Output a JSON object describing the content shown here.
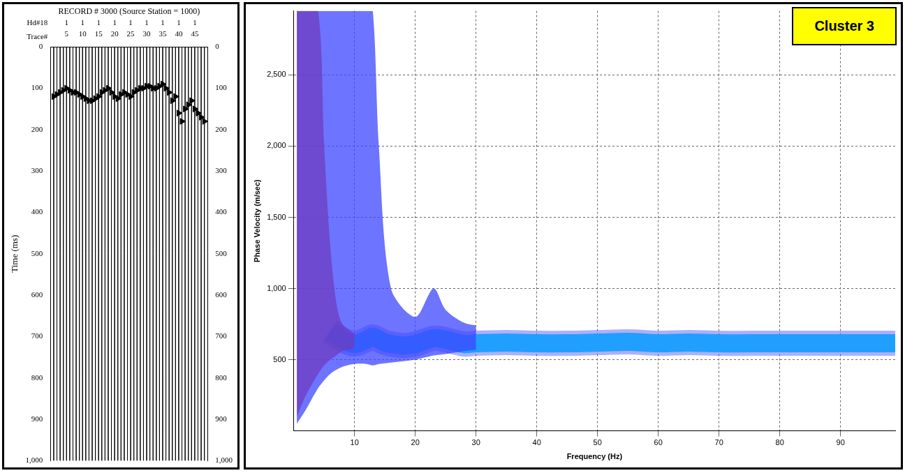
{
  "chart_data": [
    {
      "type": "wiggle",
      "title": "RECORD # 3000 (Source Station = 1000)",
      "header_label": "Hd#18",
      "header_values": [
        1,
        1,
        1,
        1,
        1,
        1,
        1,
        1,
        1
      ],
      "x_label": "Trace#",
      "y_label": "Time (ms)",
      "x": [
        1,
        2,
        3,
        4,
        5,
        6,
        7,
        8,
        9,
        10,
        11,
        12,
        13,
        14,
        15,
        16,
        17,
        18,
        19,
        20,
        21,
        22,
        23,
        24,
        25,
        26,
        27,
        28,
        29,
        30,
        31,
        32,
        33,
        34,
        35,
        36,
        37,
        38,
        39,
        40,
        41,
        42,
        43,
        44,
        45,
        46,
        47,
        48
      ],
      "first_break": [
        120,
        115,
        110,
        105,
        100,
        105,
        110,
        110,
        115,
        120,
        125,
        130,
        130,
        125,
        120,
        110,
        105,
        100,
        110,
        120,
        125,
        115,
        110,
        115,
        120,
        110,
        105,
        100,
        100,
        95,
        95,
        100,
        100,
        95,
        90,
        100,
        110,
        130,
        120,
        160,
        180,
        150,
        140,
        130,
        150,
        160,
        170,
        180
      ],
      "marker": "triangle",
      "xlim": [
        0,
        49
      ],
      "xticks": [
        5,
        10,
        15,
        20,
        25,
        30,
        35,
        40,
        45
      ],
      "ylim": [
        0,
        1000
      ],
      "yticks": [
        0,
        100,
        200,
        300,
        400,
        500,
        600,
        700,
        800,
        900,
        1000
      ],
      "grid": false
    },
    {
      "type": "dispersion",
      "title": "Cluster 3",
      "x_label": "Frequency (Hz)",
      "y_label": "Phase Velocity (m/sec)",
      "ridge": {
        "x": [
          6,
          8,
          10,
          12,
          13,
          15,
          18,
          20,
          23,
          25,
          28,
          30,
          35,
          40,
          45,
          50,
          55,
          60,
          65,
          70,
          75,
          80,
          85,
          90,
          95,
          99
        ],
        "values": [
          700,
          640,
          610,
          640,
          660,
          620,
          600,
          610,
          650,
          640,
          610,
          615,
          620,
          615,
          615,
          620,
          625,
          615,
          620,
          615,
          615,
          615,
          615,
          615,
          615,
          615
        ]
      },
      "energy_regions": [
        {
          "x": [
            0.5,
            2,
            4,
            6,
            8,
            10,
            12,
            13,
            14,
            16,
            20,
            23,
            25,
            28,
            30
          ],
          "lower": [
            50,
            150,
            300,
            400,
            450,
            470,
            470,
            460,
            470,
            480,
            500,
            530,
            540,
            560,
            570
          ],
          "upper": [
            2950,
            2950,
            2950,
            2950,
            2950,
            2950,
            2950,
            2950,
            2000,
            1000,
            800,
            1000,
            850,
            760,
            740
          ],
          "color": "#3c46ff"
        },
        {
          "x": [
            0.5,
            2,
            4,
            5,
            6,
            7,
            8,
            10
          ],
          "lower": [
            100,
            250,
            400,
            460,
            500,
            530,
            560,
            580
          ],
          "upper": [
            2950,
            2950,
            2950,
            2000,
            1300,
            900,
            750,
            680
          ],
          "color": "#ff2000"
        }
      ],
      "xlim": [
        0,
        99
      ],
      "xticks": [
        10,
        20,
        30,
        40,
        50,
        60,
        70,
        80,
        90
      ],
      "ylim": [
        0,
        2950
      ],
      "yticks": [
        500,
        1000,
        1500,
        2000,
        2500
      ],
      "grid": true
    }
  ]
}
